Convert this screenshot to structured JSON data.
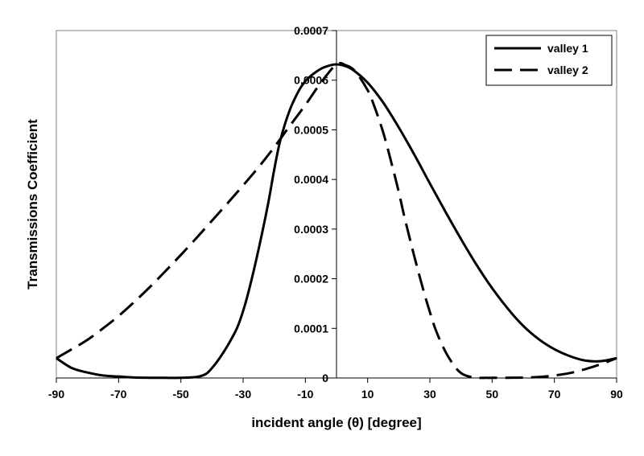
{
  "chart_data": {
    "type": "line",
    "title": "",
    "xlabel": "incident angle (θ) [degree]",
    "ylabel": "Transmissions Coefficient",
    "xlim": [
      -90,
      90
    ],
    "ylim": [
      0,
      0.0007
    ],
    "x_ticks": [
      "-90",
      "-70",
      "-50",
      "-30",
      "-10",
      "10",
      "30",
      "50",
      "70",
      "90"
    ],
    "x_tick_values": [
      -90,
      -70,
      -50,
      -30,
      -10,
      10,
      30,
      50,
      70,
      90
    ],
    "y_ticks": [
      "0",
      "0.0001",
      "0.0002",
      "0.0003",
      "0.0004",
      "0.0005",
      "0.0006",
      "0.0007"
    ],
    "y_tick_values": [
      0,
      0.0001,
      0.0002,
      0.0003,
      0.0004,
      0.0005,
      0.0006,
      0.0007
    ],
    "y_axis_position": "x=0",
    "grid": false,
    "legend_position": "top-right",
    "series": [
      {
        "name": "valley 1",
        "style": "solid",
        "color": "#000000",
        "x": [
          -90,
          -85,
          -80,
          -75,
          -70,
          -65,
          -60,
          -55,
          -50,
          -45,
          -42,
          -40,
          -38,
          -35,
          -32,
          -30,
          -28,
          -25,
          -22,
          -20,
          -18,
          -15,
          -12,
          -10,
          -8,
          -5,
          -2,
          0,
          2,
          5,
          10,
          15,
          20,
          25,
          30,
          35,
          40,
          45,
          50,
          55,
          60,
          65,
          70,
          75,
          80,
          85,
          90
        ],
        "y": [
          4e-05,
          2e-05,
          1.1e-05,
          5e-06,
          3e-06,
          1e-06,
          5e-07,
          3e-07,
          5e-07,
          2e-06,
          8e-06,
          2e-05,
          3.6e-05,
          6.5e-05,
          0.0001,
          0.000135,
          0.00018,
          0.00026,
          0.00035,
          0.00042,
          0.00048,
          0.00054,
          0.00058,
          0.000598,
          0.00061,
          0.000623,
          0.00063,
          0.000632,
          0.00063,
          0.000622,
          0.000595,
          0.000555,
          0.000505,
          0.00045,
          0.000392,
          0.000335,
          0.00028,
          0.000228,
          0.000181,
          0.00014,
          0.000105,
          7.8e-05,
          5.8e-05,
          4.4e-05,
          3.5e-05,
          3.4e-05,
          4e-05
        ]
      },
      {
        "name": "valley 2",
        "style": "dashed",
        "color": "#000000",
        "x": [
          -90,
          -85,
          -80,
          -75,
          -70,
          -65,
          -60,
          -55,
          -50,
          -45,
          -40,
          -35,
          -30,
          -25,
          -20,
          -15,
          -10,
          -5,
          0,
          3,
          6,
          10,
          12,
          15,
          18,
          20,
          22,
          25,
          28,
          30,
          32,
          35,
          38,
          40,
          42,
          45,
          48,
          50,
          55,
          60,
          65,
          70,
          75,
          80,
          85,
          90
        ],
        "y": [
          4e-05,
          5.8e-05,
          7.7e-05,
          0.0001,
          0.000125,
          0.000153,
          0.000183,
          0.000215,
          0.000248,
          0.000282,
          0.000317,
          0.000352,
          0.000388,
          0.000425,
          0.000465,
          0.000508,
          0.00055,
          0.000595,
          0.000632,
          0.00063,
          0.000618,
          0.00058,
          0.00055,
          0.000495,
          0.000425,
          0.000375,
          0.00032,
          0.000245,
          0.000175,
          0.000133,
          9.5e-05,
          5.3e-05,
          2.3e-05,
          1e-05,
          4e-06,
          5e-07,
          3e-07,
          3e-07,
          5e-07,
          8e-07,
          2e-06,
          5e-06,
          1e-05,
          1.8e-05,
          2.8e-05,
          4e-05
        ]
      }
    ]
  }
}
